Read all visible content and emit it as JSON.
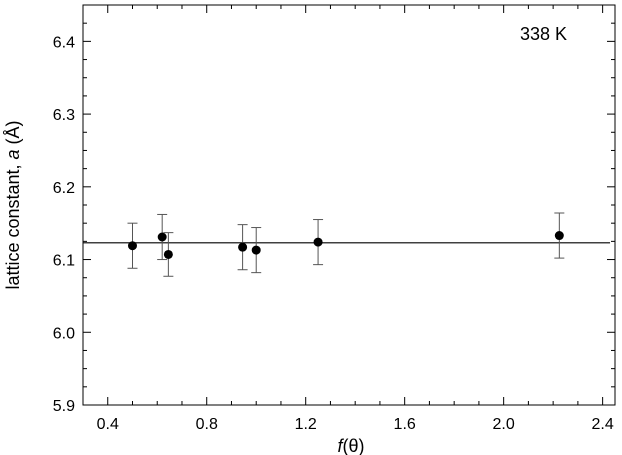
{
  "chart_data": {
    "type": "scatter",
    "title": "",
    "annotation": "338  K",
    "xlabel": {
      "italic": "f",
      "rest": "(θ)"
    },
    "ylabel": {
      "pre": "lattice constant, ",
      "italic": "a",
      "post": " (Å)"
    },
    "xlim": [
      0.3,
      2.45
    ],
    "ylim": [
      5.9,
      6.45
    ],
    "xticks": [
      0.4,
      0.8,
      1.2,
      1.6,
      2.0,
      2.4
    ],
    "xtick_labels": [
      "0.4",
      "0.8",
      "1.2",
      "1.6",
      "2.0",
      "2.4"
    ],
    "yticks": [
      5.9,
      6.0,
      6.1,
      6.2,
      6.3,
      6.4
    ],
    "ytick_labels": [
      "5.9",
      "6.0",
      "6.1",
      "6.2",
      "6.3",
      "6.4"
    ],
    "grid": false,
    "points": [
      {
        "x": 0.5,
        "y": 6.119,
        "err": 0.031
      },
      {
        "x": 0.62,
        "y": 6.131,
        "err": 0.031
      },
      {
        "x": 0.645,
        "y": 6.107,
        "err": 0.03
      },
      {
        "x": 0.945,
        "y": 6.117,
        "err": 0.031
      },
      {
        "x": 1.0,
        "y": 6.113,
        "err": 0.031
      },
      {
        "x": 1.25,
        "y": 6.124,
        "err": 0.031
      },
      {
        "x": 2.225,
        "y": 6.133,
        "err": 0.031
      }
    ],
    "fit_line": {
      "y": 6.123,
      "x_from": 0.3,
      "x_to": 2.43
    },
    "colors": {
      "marker": "#000000",
      "errorbar": "#555555",
      "line": "#000000",
      "axis": "#000000"
    }
  }
}
